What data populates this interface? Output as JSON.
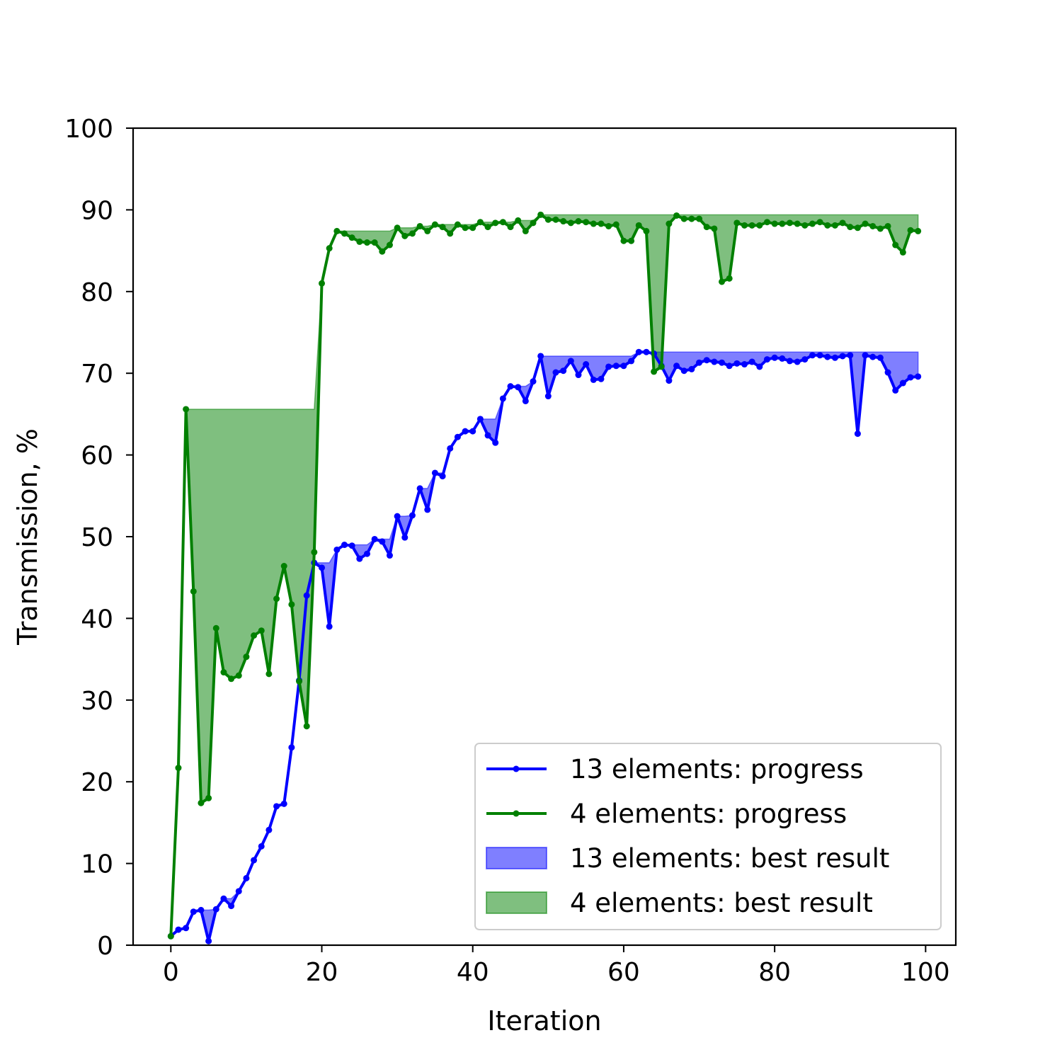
{
  "chart_data": {
    "type": "line",
    "title": "",
    "xlabel": "Iteration",
    "ylabel": "Transmission, %",
    "xlim": [
      -5,
      104
    ],
    "ylim": [
      0,
      100
    ],
    "xticks": [
      0,
      20,
      40,
      60,
      80,
      100
    ],
    "yticks": [
      0,
      10,
      20,
      30,
      40,
      50,
      60,
      70,
      80,
      90,
      100
    ],
    "grid": false,
    "legend_position": "lower-right",
    "x": [
      0,
      1,
      2,
      3,
      4,
      5,
      6,
      7,
      8,
      9,
      10,
      11,
      12,
      13,
      14,
      15,
      16,
      17,
      18,
      19,
      20,
      21,
      22,
      23,
      24,
      25,
      26,
      27,
      28,
      29,
      30,
      31,
      32,
      33,
      34,
      35,
      36,
      37,
      38,
      39,
      40,
      41,
      42,
      43,
      44,
      45,
      46,
      47,
      48,
      49,
      50,
      51,
      52,
      53,
      54,
      55,
      56,
      57,
      58,
      59,
      60,
      61,
      62,
      63,
      64,
      65,
      66,
      67,
      68,
      69,
      70,
      71,
      72,
      73,
      74,
      75,
      76,
      77,
      78,
      79,
      80,
      81,
      82,
      83,
      84,
      85,
      86,
      87,
      88,
      89,
      90,
      91,
      92,
      93,
      94,
      95,
      96,
      97,
      98,
      99
    ],
    "series": [
      {
        "name": "13 elements: progress",
        "kind": "line",
        "color": "#0000ff",
        "values": [
          1.1,
          1.9,
          2.1,
          4.1,
          4.3,
          0.5,
          4.4,
          5.7,
          4.8,
          6.6,
          8.2,
          10.4,
          12.1,
          14.1,
          17.0,
          17.3,
          24.2,
          32.4,
          42.8,
          46.8,
          46.2,
          39.0,
          48.4,
          49.0,
          48.9,
          47.3,
          47.9,
          49.7,
          49.4,
          47.7,
          52.5,
          49.9,
          52.6,
          55.9,
          53.3,
          57.8,
          57.4,
          60.8,
          62.2,
          62.9,
          62.9,
          64.4,
          62.4,
          61.5,
          66.9,
          68.4,
          68.3,
          66.6,
          69.0,
          72.1,
          67.2,
          70.1,
          70.3,
          71.5,
          69.8,
          71.1,
          69.2,
          69.3,
          70.8,
          70.9,
          70.9,
          71.5,
          72.6,
          72.6,
          72.4,
          70.9,
          69.1,
          70.9,
          70.3,
          70.5,
          71.3,
          71.6,
          71.4,
          71.3,
          70.9,
          71.2,
          71.1,
          71.4,
          70.8,
          71.7,
          71.9,
          71.8,
          71.5,
          71.4,
          71.7,
          72.2,
          72.2,
          72.0,
          71.9,
          72.1,
          72.2,
          62.6,
          72.2,
          72.0,
          71.9,
          70.1,
          67.9,
          68.8,
          69.5,
          69.6
        ]
      },
      {
        "name": "4 elements: progress",
        "kind": "line",
        "color": "#008000",
        "values": [
          1.1,
          21.7,
          65.6,
          43.3,
          17.4,
          18.0,
          38.8,
          33.4,
          32.6,
          33.0,
          35.3,
          37.9,
          38.5,
          33.2,
          42.4,
          46.4,
          41.7,
          32.3,
          26.8,
          48.1,
          81.0,
          85.3,
          87.4,
          87.1,
          86.6,
          86.1,
          86.0,
          86.0,
          84.9,
          85.7,
          87.8,
          86.8,
          87.1,
          88.0,
          87.4,
          88.2,
          87.9,
          87.1,
          88.2,
          87.8,
          87.8,
          88.5,
          87.9,
          88.4,
          88.5,
          87.9,
          88.7,
          87.4,
          88.4,
          89.4,
          88.8,
          88.8,
          88.6,
          88.4,
          88.6,
          88.5,
          88.3,
          88.3,
          88.0,
          88.2,
          86.2,
          86.2,
          88.1,
          87.4,
          70.2,
          70.8,
          88.3,
          89.3,
          88.9,
          88.9,
          88.9,
          87.9,
          87.7,
          81.2,
          81.6,
          88.4,
          88.1,
          88.1,
          88.1,
          88.5,
          88.3,
          88.3,
          88.4,
          88.3,
          88.1,
          88.3,
          88.5,
          88.1,
          88.1,
          88.4,
          87.9,
          87.8,
          88.3,
          88.0,
          87.7,
          88.0,
          85.7,
          84.8,
          87.5,
          87.4
        ]
      },
      {
        "name": "13 elements: best result",
        "kind": "fill",
        "color": "#0000ff",
        "between": "13 elements: progress"
      },
      {
        "name": "4 elements: best result",
        "kind": "fill",
        "color": "#008000",
        "between": "4 elements: progress"
      }
    ]
  }
}
